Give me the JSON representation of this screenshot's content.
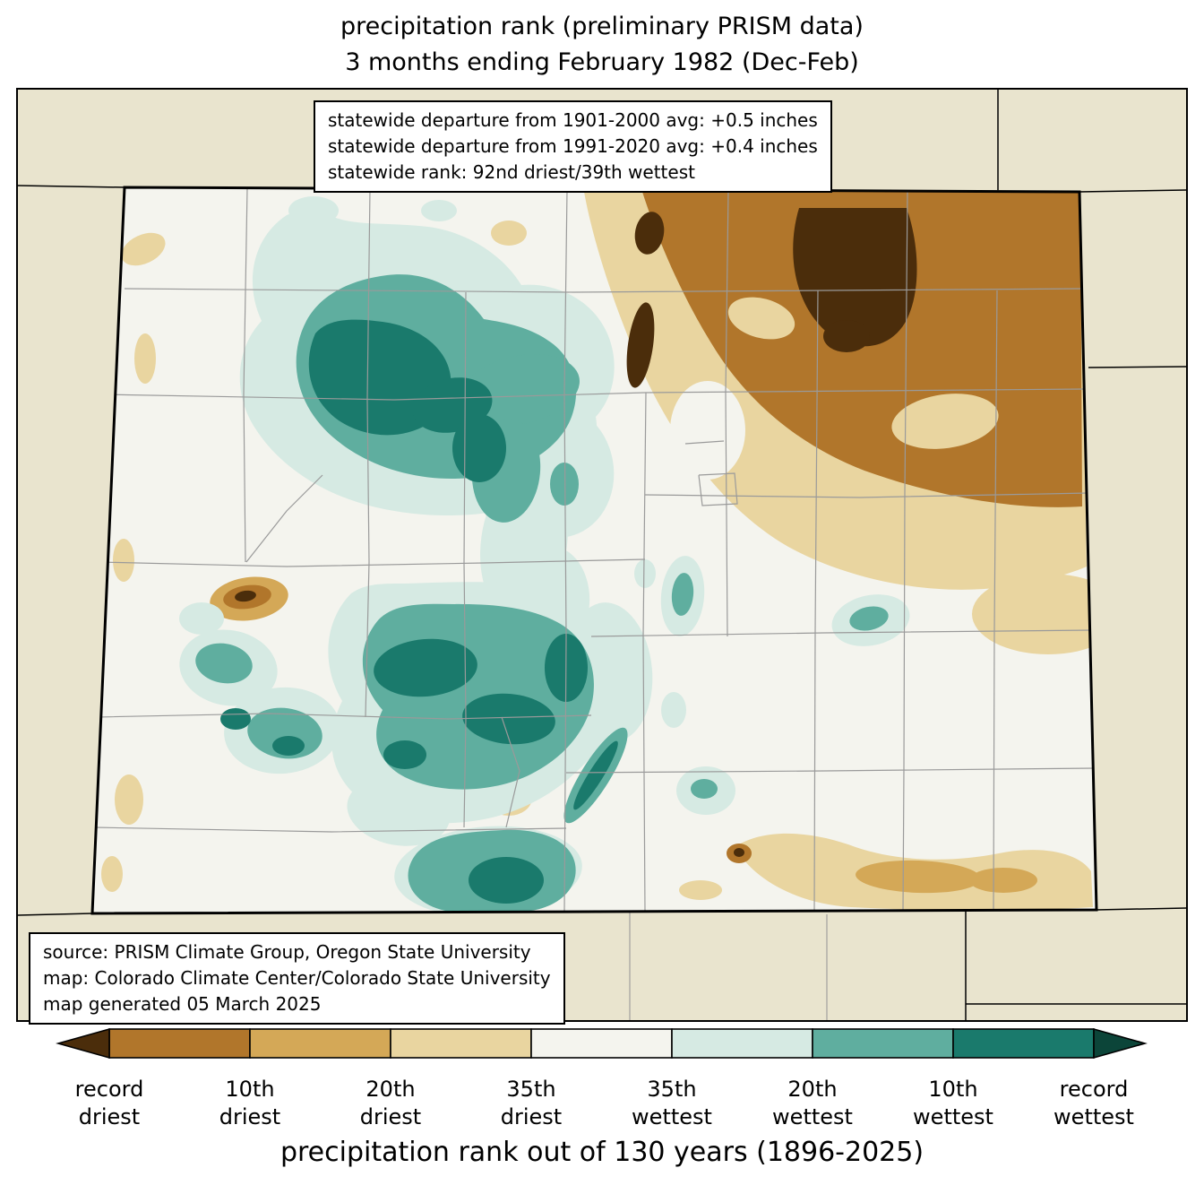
{
  "title": {
    "line1": "precipitation rank (preliminary PRISM data)",
    "line2": "3 months ending February 1982 (Dec-Feb)"
  },
  "stats_box": {
    "lines": [
      "statewide departure from 1901-2000 avg: +0.5 inches",
      "statewide departure from 1991-2020 avg: +0.4 inches",
      "statewide rank: 92nd driest/39th wettest"
    ]
  },
  "source_box": {
    "lines": [
      "source: PRISM Climate Group, Oregon State University",
      "map: Colorado Climate Center/Colorado State University",
      "map generated 05 March 2025"
    ]
  },
  "colorbar": {
    "caption": "precipitation rank out of 130 years (1896-2025)",
    "labels": [
      [
        "record",
        "driest"
      ],
      [
        "10th",
        "driest"
      ],
      [
        "20th",
        "driest"
      ],
      [
        "35th",
        "driest"
      ],
      [
        "35th",
        "wettest"
      ],
      [
        "20th",
        "wettest"
      ],
      [
        "10th",
        "wettest"
      ],
      [
        "record",
        "wettest"
      ]
    ],
    "segment_colors": [
      "#b1762b",
      "#d4a857",
      "#e9d5a0",
      "#f4f4ee",
      "#d6eae3",
      "#5fae9f",
      "#1a7a6c"
    ],
    "arrow_left_color": "#4b2d0b",
    "arrow_right_color": "#0c4539"
  },
  "colors": {
    "record_driest": "#4b2d0b",
    "driest_10th": "#b1762b",
    "driest_20th": "#d4a857",
    "driest_35th": "#e9d5a0",
    "near_normal": "#f4f4ee",
    "wettest_35th": "#d6eae3",
    "wettest_20th": "#5fae9f",
    "wettest_10th": "#1a7a6c",
    "record_wettest": "#0c4539",
    "outside_bg": "#e9e4ce",
    "county_line": "#9a9a9a",
    "state_border": "#000000"
  },
  "chart_data": {
    "type": "choropleth_map",
    "region": "Colorado (with surrounding state border lines)",
    "title": "precipitation rank (preliminary PRISM data)",
    "subtitle": "3 months ending February 1982 (Dec-Feb)",
    "metric": "precipitation rank out of 130 years (1896-2025)",
    "statewide_departure_from_1901_2000_avg_inches": 0.5,
    "statewide_departure_from_1991_2020_avg_inches": 0.4,
    "statewide_rank": "92nd driest/39th wettest",
    "colorbar_boundary_labels": [
      "record driest",
      "10th driest",
      "20th driest",
      "35th driest",
      "35th wettest",
      "20th wettest",
      "10th wettest",
      "record wettest"
    ],
    "colorbar_segment_colors": [
      "#4b2d0b",
      "#b1762b",
      "#d4a857",
      "#e9d5a0",
      "#f4f4ee",
      "#d6eae3",
      "#5fae9f",
      "#1a7a6c",
      "#0c4539"
    ],
    "spatial_pattern": {
      "northeast_plains": "much drier than normal (10th driest to record driest core)",
      "north_central_mountains": "wetter than normal with 10th-wettest cores",
      "central_and_south_central_mountains": "wetter than normal with 10th-wettest cores",
      "southeast_plains": "drier than normal (35th to 20th driest band)",
      "west_central_spot": "small record-driest bullseye",
      "remainder": "near normal"
    }
  }
}
